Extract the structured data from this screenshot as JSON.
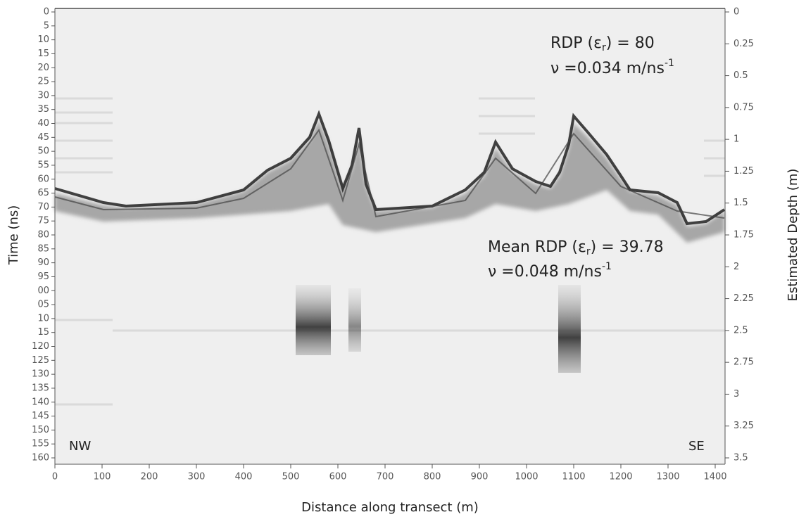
{
  "chart_data": {
    "type": "radargram",
    "xlabel": "Distance along transect  (m)",
    "ylabel": "Time (ns)",
    "y2label": "Estimated Depth (m)",
    "xlim": [
      0,
      1400
    ],
    "xticks": [
      0,
      100,
      200,
      300,
      400,
      500,
      600,
      700,
      800,
      900,
      1000,
      1100,
      1200,
      1300,
      1400
    ],
    "ylim": [
      0,
      160
    ],
    "yticks": [
      0,
      5,
      10,
      15,
      20,
      25,
      30,
      35,
      40,
      45,
      50,
      55,
      60,
      65,
      70,
      75,
      80,
      85,
      90,
      95,
      {
        "value": 100,
        "label": "00"
      },
      {
        "value": 105,
        "label": "05"
      },
      {
        "value": 110,
        "label": "10"
      },
      {
        "value": 115,
        "label": "15"
      },
      120,
      125,
      130,
      135,
      140,
      145,
      150,
      155,
      160
    ],
    "y2lim": [
      0,
      3.5
    ],
    "y2ticks": [
      0,
      0.25,
      0.5,
      0.75,
      1,
      1.25,
      1.5,
      1.75,
      2,
      2.25,
      2.5,
      2.75,
      3,
      3.25,
      3.5
    ],
    "annotations": [
      {
        "parts": [
          "RDP (ε",
          "r",
          ") = 80"
        ]
      },
      {
        "parts": [
          "ν  =0.034 m/ns",
          "-1"
        ]
      },
      {
        "parts": [
          "Mean RDP (ε",
          "r",
          ") = 39.78"
        ]
      },
      {
        "parts": [
          "ν  =0.048 m/ns",
          "-1"
        ]
      }
    ],
    "direction_labels": [
      "NW",
      "SE"
    ]
  }
}
